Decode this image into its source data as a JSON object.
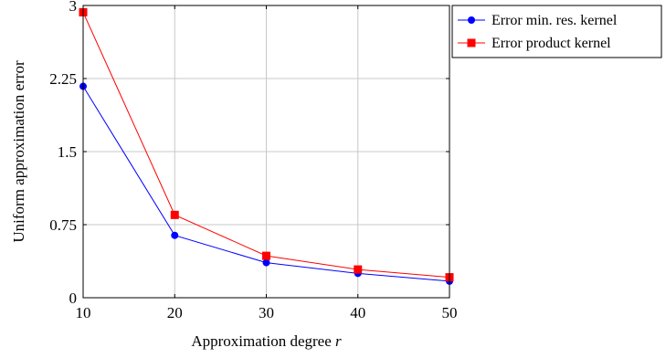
{
  "chart_data": {
    "type": "line",
    "xlabel": "Approximation degree",
    "xlabel_var": "r",
    "ylabel": "Uniform approximation error",
    "x": [
      10,
      20,
      30,
      40,
      50
    ],
    "xlim": [
      10,
      50
    ],
    "ylim": [
      0,
      3
    ],
    "xticks": [
      "10",
      "20",
      "30",
      "40",
      "50"
    ],
    "yticks": [
      "0",
      "0.75",
      "1.5",
      "2.25",
      "3"
    ],
    "ytick_values": [
      0,
      0.75,
      1.5,
      2.25,
      3
    ],
    "grid": true,
    "legend_position": "outside-top-right",
    "series": [
      {
        "name": "Error min. res. kernel",
        "values": [
          2.17,
          0.64,
          0.36,
          0.25,
          0.17
        ],
        "color": "#0000ff",
        "marker": "circle"
      },
      {
        "name": "Error product kernel",
        "values": [
          2.93,
          0.85,
          0.43,
          0.29,
          0.21
        ],
        "color": "#ff0000",
        "marker": "square"
      }
    ]
  }
}
